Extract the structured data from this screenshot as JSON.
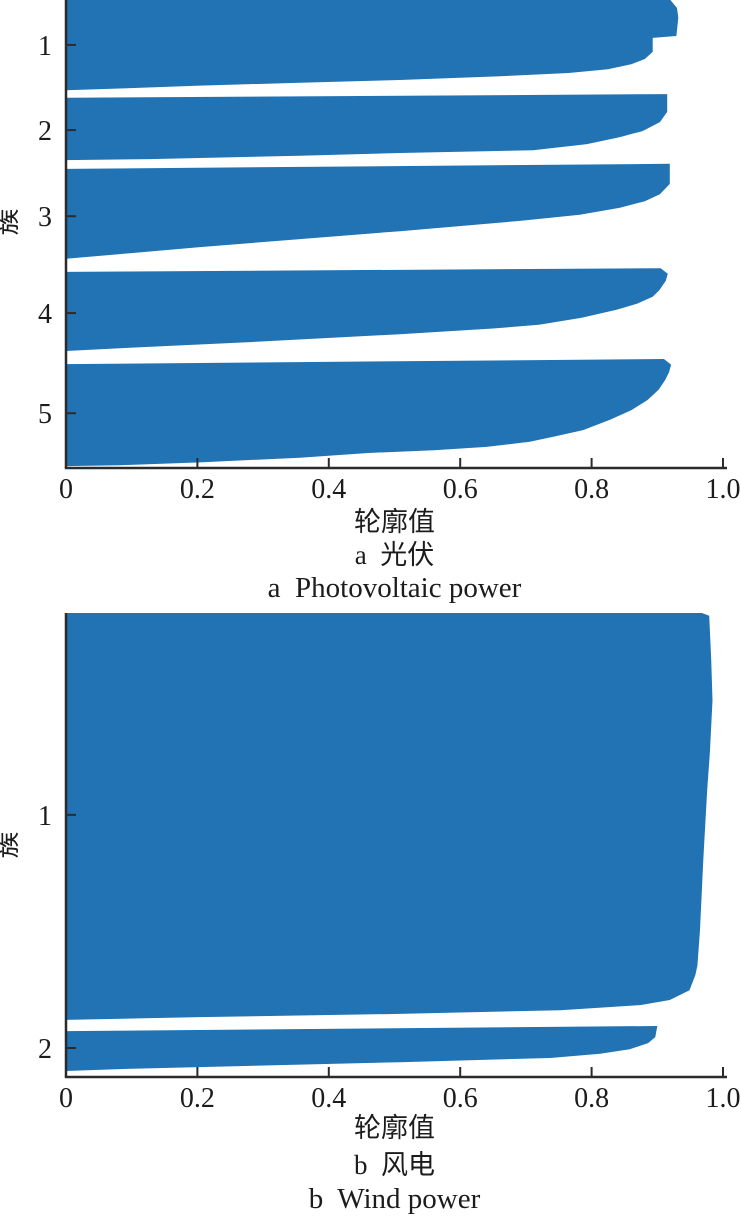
{
  "figure": {
    "background": "#ffffff",
    "text_color": "#1c1c1c",
    "axis_color": "#2b2b2b",
    "band_color": "#2173b4"
  },
  "chart_data": [
    {
      "type": "area",
      "subtype": "silhouette-plot",
      "title_zh": "a  光伏",
      "title_en": "a  Photovoltaic power",
      "xlabel": "轮廓值",
      "ylabel": "簇",
      "xlim": [
        0,
        1.0
      ],
      "grid": false,
      "legend": "none",
      "x_ticks": [
        {
          "label": "0",
          "value": 0
        },
        {
          "label": "0.2",
          "value": 0.2
        },
        {
          "label": "0.4",
          "value": 0.4
        },
        {
          "label": "0.6",
          "value": 0.6
        },
        {
          "label": "0.8",
          "value": 0.8
        },
        {
          "label": "1.0",
          "value": 1.0
        }
      ],
      "clusters": [
        {
          "label": "1",
          "tick_pos": 0.096
        },
        {
          "label": "2",
          "tick_pos": 0.278
        },
        {
          "label": "3",
          "tick_pos": 0.462
        },
        {
          "label": "4",
          "tick_pos": 0.669
        },
        {
          "label": "5",
          "tick_pos": 0.883
        }
      ],
      "bands": [
        {
          "cluster": "1",
          "max_silhouette": 0.93,
          "profile": [
            [
              0.0,
              0.0
            ],
            [
              0.92,
              0.0
            ],
            [
              0.93,
              0.017
            ],
            [
              0.932,
              0.038
            ],
            [
              0.93,
              0.064
            ],
            [
              0.929,
              0.077
            ],
            [
              0.893,
              0.081
            ],
            [
              0.893,
              0.111
            ],
            [
              0.881,
              0.126
            ],
            [
              0.861,
              0.137
            ],
            [
              0.825,
              0.148
            ],
            [
              0.765,
              0.156
            ],
            [
              0.661,
              0.163
            ],
            [
              0.508,
              0.171
            ],
            [
              0.356,
              0.177
            ],
            [
              0.204,
              0.183
            ],
            [
              0.082,
              0.189
            ],
            [
              0.0,
              0.193
            ]
          ]
        },
        {
          "cluster": "2",
          "max_silhouette": 0.915,
          "profile": [
            [
              0.0,
              0.209
            ],
            [
              0.915,
              0.201
            ],
            [
              0.915,
              0.239
            ],
            [
              0.904,
              0.261
            ],
            [
              0.878,
              0.28
            ],
            [
              0.843,
              0.293
            ],
            [
              0.793,
              0.308
            ],
            [
              0.711,
              0.321
            ],
            [
              0.508,
              0.327
            ],
            [
              0.356,
              0.333
            ],
            [
              0.128,
              0.34
            ],
            [
              0.0,
              0.342
            ]
          ]
        },
        {
          "cluster": "3",
          "max_silhouette": 0.919,
          "profile": [
            [
              0.0,
              0.361
            ],
            [
              0.919,
              0.35
            ],
            [
              0.919,
              0.393
            ],
            [
              0.904,
              0.415
            ],
            [
              0.881,
              0.43
            ],
            [
              0.843,
              0.444
            ],
            [
              0.782,
              0.459
            ],
            [
              0.691,
              0.472
            ],
            [
              0.508,
              0.494
            ],
            [
              0.356,
              0.511
            ],
            [
              0.204,
              0.528
            ],
            [
              0.082,
              0.543
            ],
            [
              0.0,
              0.553
            ]
          ]
        },
        {
          "cluster": "4",
          "max_silhouette": 0.916,
          "profile": [
            [
              0.0,
              0.581
            ],
            [
              0.905,
              0.573
            ],
            [
              0.916,
              0.585
            ],
            [
              0.913,
              0.6
            ],
            [
              0.903,
              0.62
            ],
            [
              0.893,
              0.634
            ],
            [
              0.869,
              0.649
            ],
            [
              0.838,
              0.662
            ],
            [
              0.785,
              0.679
            ],
            [
              0.72,
              0.694
            ],
            [
              0.65,
              0.702
            ],
            [
              0.508,
              0.714
            ],
            [
              0.28,
              0.731
            ],
            [
              0.082,
              0.744
            ],
            [
              0.0,
              0.75
            ]
          ]
        },
        {
          "cluster": "5",
          "max_silhouette": 0.921,
          "profile": [
            [
              0.0,
              0.778
            ],
            [
              0.91,
              0.767
            ],
            [
              0.921,
              0.779
            ],
            [
              0.918,
              0.795
            ],
            [
              0.912,
              0.812
            ],
            [
              0.902,
              0.833
            ],
            [
              0.885,
              0.855
            ],
            [
              0.861,
              0.876
            ],
            [
              0.828,
              0.897
            ],
            [
              0.787,
              0.919
            ],
            [
              0.745,
              0.932
            ],
            [
              0.706,
              0.944
            ],
            [
              0.64,
              0.955
            ],
            [
              0.56,
              0.962
            ],
            [
              0.46,
              0.968
            ],
            [
              0.356,
              0.978
            ],
            [
              0.204,
              0.988
            ],
            [
              0.082,
              0.994
            ],
            [
              0.0,
              0.996
            ]
          ]
        }
      ]
    },
    {
      "type": "area",
      "subtype": "silhouette-plot",
      "title_zh": "b  风电",
      "title_en": "b  Wind power",
      "xlabel": "轮廓值",
      "ylabel": "簇",
      "xlim": [
        0,
        1.0
      ],
      "grid": false,
      "legend": "none",
      "x_ticks": [
        {
          "label": "0",
          "value": 0
        },
        {
          "label": "0.2",
          "value": 0.2
        },
        {
          "label": "0.4",
          "value": 0.4
        },
        {
          "label": "0.6",
          "value": 0.6
        },
        {
          "label": "0.8",
          "value": 0.8
        },
        {
          "label": "1.0",
          "value": 1.0
        }
      ],
      "clusters": [
        {
          "label": "1",
          "tick_pos": 0.435
        },
        {
          "label": "2",
          "tick_pos": 0.9375
        }
      ],
      "bands": [
        {
          "cluster": "1",
          "max_silhouette": 0.984,
          "profile": [
            [
              0.0,
              0.0
            ],
            [
              0.968,
              0.0
            ],
            [
              0.979,
              0.006
            ],
            [
              0.982,
              0.1
            ],
            [
              0.984,
              0.188
            ],
            [
              0.98,
              0.3
            ],
            [
              0.976,
              0.381
            ],
            [
              0.97,
              0.532
            ],
            [
              0.965,
              0.683
            ],
            [
              0.961,
              0.76
            ],
            [
              0.958,
              0.78
            ],
            [
              0.949,
              0.813
            ],
            [
              0.919,
              0.834
            ],
            [
              0.874,
              0.845
            ],
            [
              0.752,
              0.856
            ],
            [
              0.508,
              0.864
            ],
            [
              0.204,
              0.871
            ],
            [
              0.0,
              0.877
            ]
          ]
        },
        {
          "cluster": "2",
          "max_silhouette": 0.9,
          "profile": [
            [
              0.0,
              0.901
            ],
            [
              0.9,
              0.89
            ],
            [
              0.897,
              0.914
            ],
            [
              0.886,
              0.927
            ],
            [
              0.858,
              0.94
            ],
            [
              0.813,
              0.95
            ],
            [
              0.737,
              0.959
            ],
            [
              0.508,
              0.968
            ],
            [
              0.28,
              0.976
            ],
            [
              0.082,
              0.983
            ],
            [
              0.0,
              0.987
            ]
          ]
        }
      ]
    }
  ]
}
